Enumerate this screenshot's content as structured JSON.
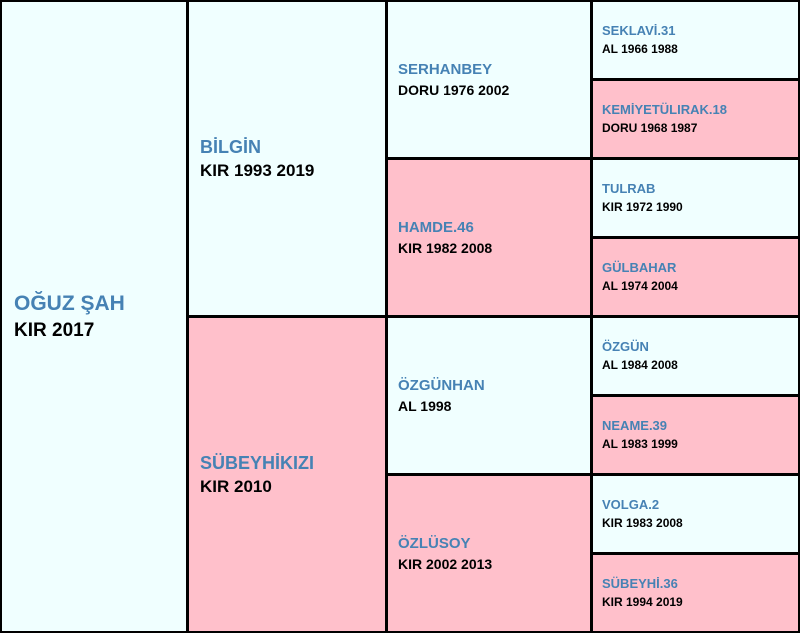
{
  "subject": {
    "name": "OĞUZ ŞAH",
    "info": "KIR 2017"
  },
  "sire": {
    "name": "BİLGİN",
    "info": "KIR 1993 2019"
  },
  "dam": {
    "name": "SÜBEYHİKIZI",
    "info": "KIR 2010"
  },
  "sire_sire": {
    "name": "SERHANBEY",
    "info": "DORU 1976 2002"
  },
  "sire_dam": {
    "name": "HAMDE.46",
    "info": "KIR 1982 2008"
  },
  "dam_sire": {
    "name": "ÖZGÜNHAN",
    "info": "AL 1998"
  },
  "dam_dam": {
    "name": "ÖZLÜSOY",
    "info": "KIR 2002 2013"
  },
  "ggp": [
    {
      "name": "SEKLAVİ.31",
      "info": "AL 1966 1988"
    },
    {
      "name": "KEMİYETÜLIRAK.18",
      "info": "DORU 1968 1987"
    },
    {
      "name": "TULRAB",
      "info": "KIR 1972 1990"
    },
    {
      "name": "GÜLBAHAR",
      "info": "AL 1974 2004"
    },
    {
      "name": "ÖZGÜN",
      "info": "AL 1984 2008"
    },
    {
      "name": "NEAME.39",
      "info": "AL 1983 1999"
    },
    {
      "name": "VOLGA.2",
      "info": "KIR 1983 2008"
    },
    {
      "name": "SÜBEYHİ.36",
      "info": "KIR 1994 2019"
    }
  ],
  "colors": {
    "male_bg": "#f0ffff",
    "female_bg": "#ffc0cb",
    "name_text": "#4682b4",
    "info_text": "#000000",
    "border": "#000000"
  }
}
